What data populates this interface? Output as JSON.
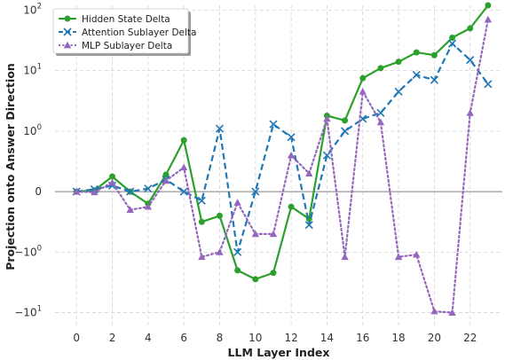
{
  "chart_data": {
    "type": "line",
    "xlabel": "LLM Layer Index",
    "ylabel": "Projection onto Answer Direction",
    "x": [
      0,
      1,
      2,
      3,
      4,
      5,
      6,
      7,
      8,
      9,
      10,
      11,
      12,
      13,
      14,
      15,
      16,
      17,
      18,
      19,
      20,
      21,
      22,
      23
    ],
    "x_ticks": [
      0,
      2,
      4,
      6,
      8,
      10,
      12,
      14,
      16,
      18,
      20,
      22
    ],
    "x_tick_labels": [
      "0",
      "2",
      "4",
      "6",
      "8",
      "10",
      "12",
      "14",
      "16",
      "18",
      "20",
      "22"
    ],
    "yscale": "symlog",
    "y_ticks": [
      {
        "value": -10,
        "base": "−10",
        "exp": "1"
      },
      {
        "value": -1,
        "base": "−10",
        "exp": "0"
      },
      {
        "value": 0,
        "base": "0",
        "exp": ""
      },
      {
        "value": 1,
        "base": "10",
        "exp": "0"
      },
      {
        "value": 10,
        "base": "10",
        "exp": "1"
      },
      {
        "value": 100,
        "base": "10",
        "exp": "2"
      }
    ],
    "grid": true,
    "zero_line": true,
    "legend_position": "upper-left",
    "series": [
      {
        "name": "Hidden State Delta",
        "color": "#2ca02c",
        "marker": "circle",
        "linestyle": "solid",
        "values": [
          0.0,
          0.02,
          0.25,
          0.0,
          -0.2,
          0.28,
          0.85,
          -0.5,
          -0.4,
          -2.0,
          -2.8,
          -2.2,
          -0.25,
          -0.45,
          1.8,
          1.5,
          7.5,
          11,
          14,
          20,
          18,
          35,
          50,
          120
        ]
      },
      {
        "name": "Attention Sublayer Delta",
        "color": "#1f77b4",
        "marker": "x",
        "linestyle": "dashed",
        "values": [
          0.0,
          0.04,
          0.1,
          0.0,
          0.05,
          0.2,
          0.0,
          -0.15,
          1.1,
          -1.0,
          0.0,
          1.3,
          0.9,
          -0.55,
          0.6,
          1.0,
          1.6,
          2.0,
          4.5,
          8.5,
          7.0,
          28,
          15,
          6
        ]
      },
      {
        "name": "MLP Sublayer Delta",
        "color": "#9467bd",
        "marker": "triangle",
        "linestyle": "dotted",
        "values": [
          0.0,
          -0.01,
          0.15,
          -0.3,
          -0.25,
          0.18,
          0.4,
          -1.2,
          -1.0,
          -0.18,
          -0.7,
          -0.7,
          0.6,
          0.3,
          1.6,
          -1.2,
          4.5,
          1.4,
          -1.2,
          -1.1,
          -9.5,
          -10,
          2.0,
          70
        ]
      }
    ]
  }
}
